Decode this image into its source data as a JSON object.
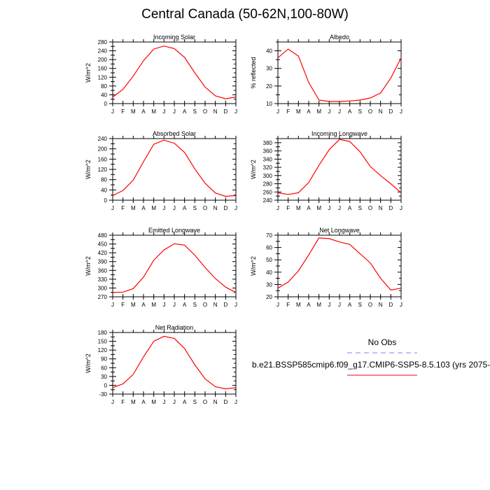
{
  "title": "Central Canada (50-62N,100-80W)",
  "months": [
    "J",
    "F",
    "M",
    "A",
    "M",
    "J",
    "J",
    "A",
    "S",
    "O",
    "N",
    "D",
    "J"
  ],
  "legend": {
    "obs_label": "No Obs",
    "obs_color": "#8080ff",
    "case_label": "b.e21.BSSP585cmip6.f09_g17.CMIP6-SSP5-8.5.103 (yrs 2075-",
    "case_color": "#ff0000"
  },
  "chart_data": [
    {
      "type": "line",
      "title": "Incoming Solar",
      "ylabel": "W/m^2",
      "ylim": [
        0,
        280
      ],
      "yticks": [
        0,
        20,
        40,
        60,
        80,
        100,
        120,
        140,
        160,
        180,
        200,
        220,
        240,
        260,
        280
      ],
      "x": [
        "J",
        "F",
        "M",
        "A",
        "M",
        "J",
        "J",
        "A",
        "S",
        "O",
        "N",
        "D",
        "J"
      ],
      "series": [
        {
          "values": [
            30,
            65,
            125,
            195,
            248,
            262,
            250,
            210,
            140,
            75,
            35,
            22,
            30
          ]
        }
      ]
    },
    {
      "type": "line",
      "title": "Albedo",
      "ylabel": "% reflected",
      "ylim": [
        10,
        45
      ],
      "yticks": [
        10,
        15,
        20,
        25,
        30,
        35,
        40,
        45
      ],
      "x": [
        "J",
        "F",
        "M",
        "A",
        "M",
        "J",
        "J",
        "A",
        "S",
        "O",
        "N",
        "D",
        "J"
      ],
      "series": [
        {
          "values": [
            36,
            41,
            37,
            22,
            12,
            11.2,
            11.2,
            11.5,
            12,
            13.2,
            16,
            24.5,
            36
          ]
        }
      ]
    },
    {
      "type": "line",
      "title": "Absorbed Solar",
      "ylabel": "W/m^2",
      "ylim": [
        0,
        240
      ],
      "yticks": [
        0,
        20,
        40,
        60,
        80,
        100,
        120,
        140,
        160,
        180,
        200,
        220,
        240
      ],
      "x": [
        "J",
        "F",
        "M",
        "A",
        "M",
        "J",
        "J",
        "A",
        "S",
        "O",
        "N",
        "D",
        "J"
      ],
      "series": [
        {
          "values": [
            18,
            38,
            78,
            150,
            218,
            234,
            222,
            186,
            122,
            66,
            28,
            15,
            18
          ]
        }
      ]
    },
    {
      "type": "line",
      "title": "Incoming Longwave",
      "ylabel": "W/m^2",
      "ylim": [
        240,
        390
      ],
      "yticks": [
        240,
        250,
        260,
        270,
        280,
        290,
        300,
        310,
        320,
        330,
        340,
        350,
        360,
        370,
        380,
        390
      ],
      "x": [
        "J",
        "F",
        "M",
        "A",
        "M",
        "J",
        "J",
        "A",
        "S",
        "O",
        "N",
        "D",
        "J"
      ],
      "series": [
        {
          "values": [
            258,
            254,
            258,
            283,
            325,
            363,
            388,
            383,
            358,
            322,
            300,
            280,
            258
          ]
        }
      ]
    },
    {
      "type": "line",
      "title": "Emitted Longwave",
      "ylabel": "W/m^2",
      "ylim": [
        270,
        480
      ],
      "yticks": [
        270,
        285,
        300,
        315,
        330,
        345,
        360,
        375,
        390,
        405,
        420,
        435,
        450,
        465,
        480
      ],
      "x": [
        "J",
        "F",
        "M",
        "A",
        "M",
        "J",
        "J",
        "A",
        "S",
        "O",
        "N",
        "D",
        "J"
      ],
      "series": [
        {
          "values": [
            285,
            286,
            298,
            337,
            395,
            430,
            451,
            446,
            412,
            370,
            332,
            303,
            285
          ]
        }
      ]
    },
    {
      "type": "line",
      "title": "Net Longwave",
      "ylabel": "W/m^2",
      "ylim": [
        20,
        70
      ],
      "yticks": [
        20,
        25,
        30,
        35,
        40,
        45,
        50,
        55,
        60,
        65,
        70
      ],
      "x": [
        "J",
        "F",
        "M",
        "A",
        "M",
        "J",
        "J",
        "A",
        "S",
        "O",
        "N",
        "D",
        "J"
      ],
      "series": [
        {
          "values": [
            27,
            32,
            41,
            54,
            67.8,
            67.2,
            64.5,
            62.5,
            55,
            47.5,
            35,
            25.5,
            27
          ]
        }
      ]
    },
    {
      "type": "line",
      "title": "Net Radiation",
      "ylabel": "W/m^2",
      "ylim": [
        -30,
        180
      ],
      "yticks": [
        -30,
        -15,
        0,
        15,
        30,
        45,
        60,
        75,
        90,
        105,
        120,
        135,
        150,
        165,
        180
      ],
      "x": [
        "J",
        "F",
        "M",
        "A",
        "M",
        "J",
        "J",
        "A",
        "S",
        "O",
        "N",
        "D",
        "J"
      ],
      "series": [
        {
          "values": [
            -8,
            5,
            37,
            97,
            150,
            167,
            160,
            125,
            70,
            22,
            -5,
            -12,
            -8
          ]
        }
      ]
    }
  ]
}
